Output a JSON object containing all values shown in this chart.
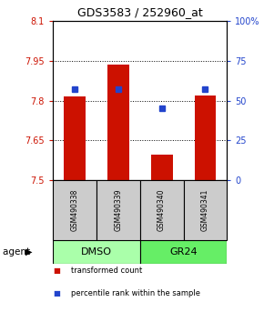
{
  "title": "GDS3583 / 252960_at",
  "categories": [
    "GSM490338",
    "GSM490339",
    "GSM490340",
    "GSM490341"
  ],
  "red_values": [
    7.815,
    7.935,
    7.595,
    7.82
  ],
  "blue_percentiles": [
    57,
    57,
    45,
    57
  ],
  "ylim_left": [
    7.5,
    8.1
  ],
  "ylim_right": [
    0,
    100
  ],
  "yticks_left": [
    7.5,
    7.65,
    7.8,
    7.95,
    8.1
  ],
  "yticks_right": [
    0,
    25,
    50,
    75,
    100
  ],
  "ytick_labels_left": [
    "7.5",
    "7.65",
    "7.8",
    "7.95",
    "8.1"
  ],
  "ytick_labels_right": [
    "0",
    "25",
    "50",
    "75",
    "100%"
  ],
  "groups": [
    {
      "label": "DMSO",
      "indices": [
        0,
        1
      ],
      "color": "#aaffaa"
    },
    {
      "label": "GR24",
      "indices": [
        2,
        3
      ],
      "color": "#66ee66"
    }
  ],
  "bar_color": "#cc1100",
  "marker_color": "#2244cc",
  "bar_width": 0.5,
  "bar_bottom": 7.5,
  "plot_bg_color": "#ffffff",
  "sample_box_color": "#cccccc",
  "legend_items": [
    {
      "label": "transformed count",
      "color": "#cc1100"
    },
    {
      "label": "percentile rank within the sample",
      "color": "#2244cc"
    }
  ]
}
